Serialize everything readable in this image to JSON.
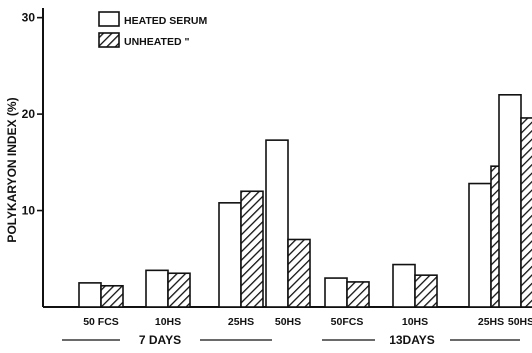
{
  "chart_data": {
    "type": "bar",
    "ylabel": "POLYKARYON INDEX (%)",
    "ylim": [
      0,
      31
    ],
    "yticks": [
      {
        "value": 10,
        "label": "10"
      },
      {
        "value": 20,
        "label": "20"
      },
      {
        "value": 30,
        "label": "30"
      }
    ],
    "legend": [
      {
        "key": "heated",
        "label": "HEATED SERUM",
        "pattern": "open"
      },
      {
        "key": "unheated",
        "label": "UNHEATED \"",
        "pattern": "hatched"
      }
    ],
    "groups": [
      {
        "label": "7 DAYS",
        "categories": [
          "50 FCS",
          "10HS",
          "25HS",
          "50HS"
        ]
      },
      {
        "label": "13DAYS",
        "categories": [
          "50FCS",
          "10HS",
          "25HS",
          "50HS"
        ]
      }
    ],
    "categories": [
      "50 FCS",
      "10HS",
      "25HS",
      "50HS",
      "50FCS",
      "10HS",
      "25HS",
      "50HS"
    ],
    "series": [
      {
        "key": "heated",
        "name": "HEATED SERUM",
        "values": [
          2.5,
          3.8,
          10.8,
          17.3,
          3.0,
          4.4,
          12.8,
          22.0
        ]
      },
      {
        "key": "unheated",
        "name": "UNHEATED",
        "values": [
          2.2,
          3.5,
          12.0,
          7.0,
          2.6,
          3.3,
          14.6,
          19.6
        ]
      }
    ],
    "grid": false,
    "legend_placement": "top-left"
  }
}
